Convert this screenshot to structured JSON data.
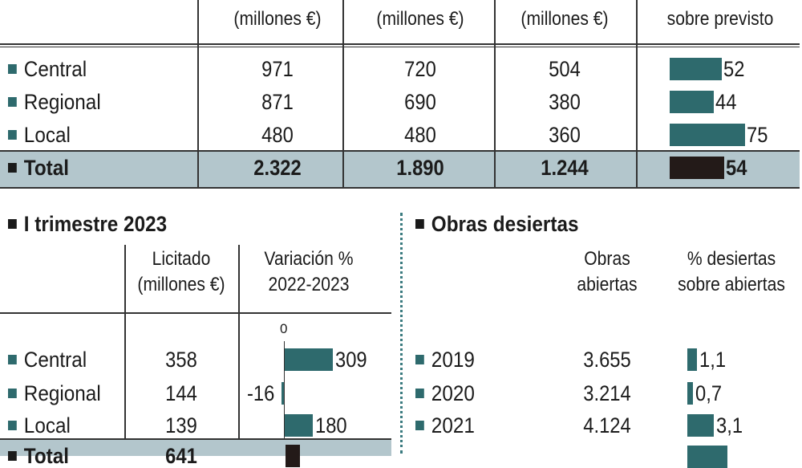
{
  "colors": {
    "bar": "#2e6a6d",
    "total_bar": "#231a18",
    "total_band": "#b3c6cc"
  },
  "top_table": {
    "header_cols": [
      "(millones €)",
      "(millones €)",
      "(millones €)",
      "sobre previsto"
    ],
    "rows": [
      {
        "label": "Central",
        "c1": "971",
        "c2": "720",
        "c3": "504",
        "pct": 52
      },
      {
        "label": "Regional",
        "c1": "871",
        "c2": "690",
        "c3": "380",
        "pct": 44
      },
      {
        "label": "Local",
        "c1": "480",
        "c2": "480",
        "c3": "360",
        "pct": 75
      }
    ],
    "total": {
      "label": "Total",
      "c1": "2.322",
      "c2": "1.890",
      "c3": "1.244",
      "pct": 54
    }
  },
  "q1": {
    "title": "I trimestre 2023",
    "col1_header": [
      "Licitado",
      "(millones €)"
    ],
    "col2_header": [
      "Variación %",
      "2022-2023"
    ],
    "zero_label": "0",
    "rows": [
      {
        "label": "Central",
        "licitado": "358",
        "variacion": 309
      },
      {
        "label": "Regional",
        "licitado": "144",
        "variacion": -16
      },
      {
        "label": "Local",
        "licitado": "139",
        "variacion": 180
      }
    ],
    "total": {
      "label": "Total",
      "licitado": "641"
    }
  },
  "obras": {
    "title": "Obras desiertas",
    "col1_header": [
      "Obras",
      "abiertas"
    ],
    "col2_header": [
      "% desiertas",
      "sobre abiertas"
    ],
    "rows": [
      {
        "year": "2019",
        "abiertas": "3.655",
        "pct": 1.1,
        "pct_label": "1,1"
      },
      {
        "year": "2020",
        "abiertas": "3.214",
        "pct": 0.7,
        "pct_label": "0,7"
      },
      {
        "year": "2021",
        "abiertas": "4.124",
        "pct": 3.1,
        "pct_label": "3,1"
      }
    ]
  }
}
